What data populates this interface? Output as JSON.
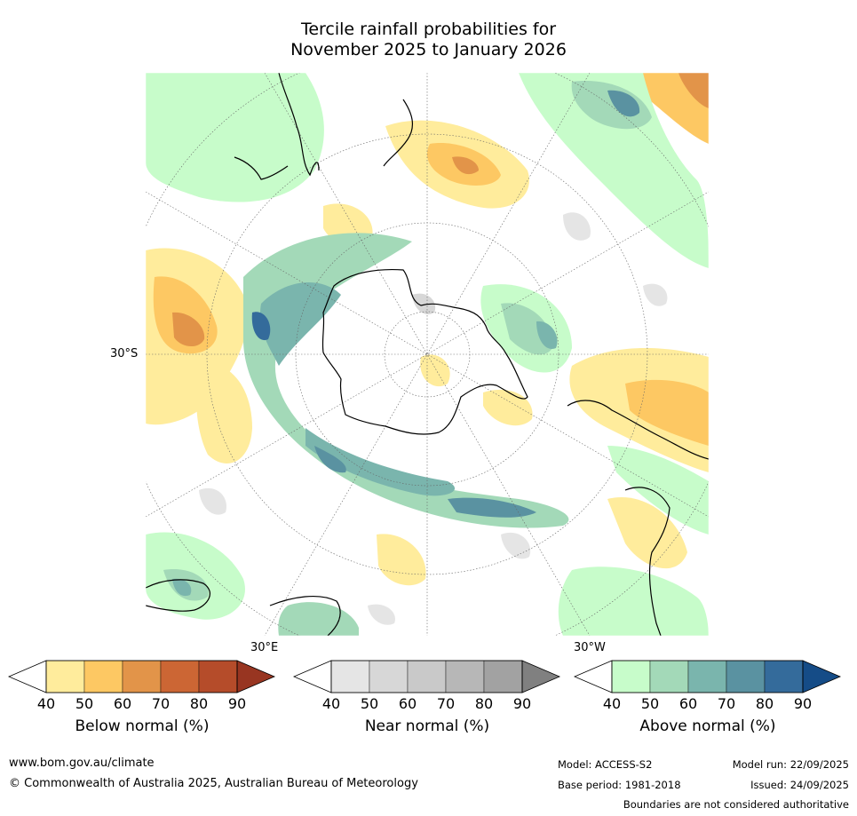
{
  "title": {
    "line1": "Tercile rainfall probabilities for",
    "line2": "November 2025 to January 2026"
  },
  "map": {
    "axis_labels": {
      "lat": "30°S",
      "lon_east": "30°E",
      "lon_west": "30°W"
    }
  },
  "legends": [
    {
      "id": "below",
      "title": "Below normal (%)",
      "ticks": [
        "40",
        "50",
        "60",
        "70",
        "80",
        "90"
      ],
      "colors": [
        "#ffffff",
        "#ffec9c",
        "#fdc863",
        "#e29449",
        "#cc6634",
        "#b54c2a",
        "#983521"
      ]
    },
    {
      "id": "near",
      "title": "Near normal (%)",
      "ticks": [
        "40",
        "50",
        "60",
        "70",
        "80",
        "90"
      ],
      "colors": [
        "#ffffff",
        "#e5e5e5",
        "#d7d7d7",
        "#c9c9c9",
        "#b7b7b7",
        "#a2a2a2",
        "#808080"
      ]
    },
    {
      "id": "above",
      "title": "Above normal (%)",
      "ticks": [
        "40",
        "50",
        "60",
        "70",
        "80",
        "90"
      ],
      "colors": [
        "#ffffff",
        "#c7fcca",
        "#a3d9b8",
        "#7ab5ad",
        "#5a92a1",
        "#346b9b",
        "#154c87"
      ]
    }
  ],
  "footer": {
    "website": "www.bom.gov.au/climate",
    "copyright": "© Commonwealth of Australia 2025, Australian Bureau of Meteorology",
    "model": "Model: ACCESS-S2",
    "base_period": "Base period: 1981-2018",
    "model_run": "Model run: 22/09/2025",
    "issued": "Issued: 24/09/2025",
    "disclaimer": "Boundaries are not considered authoritative"
  }
}
